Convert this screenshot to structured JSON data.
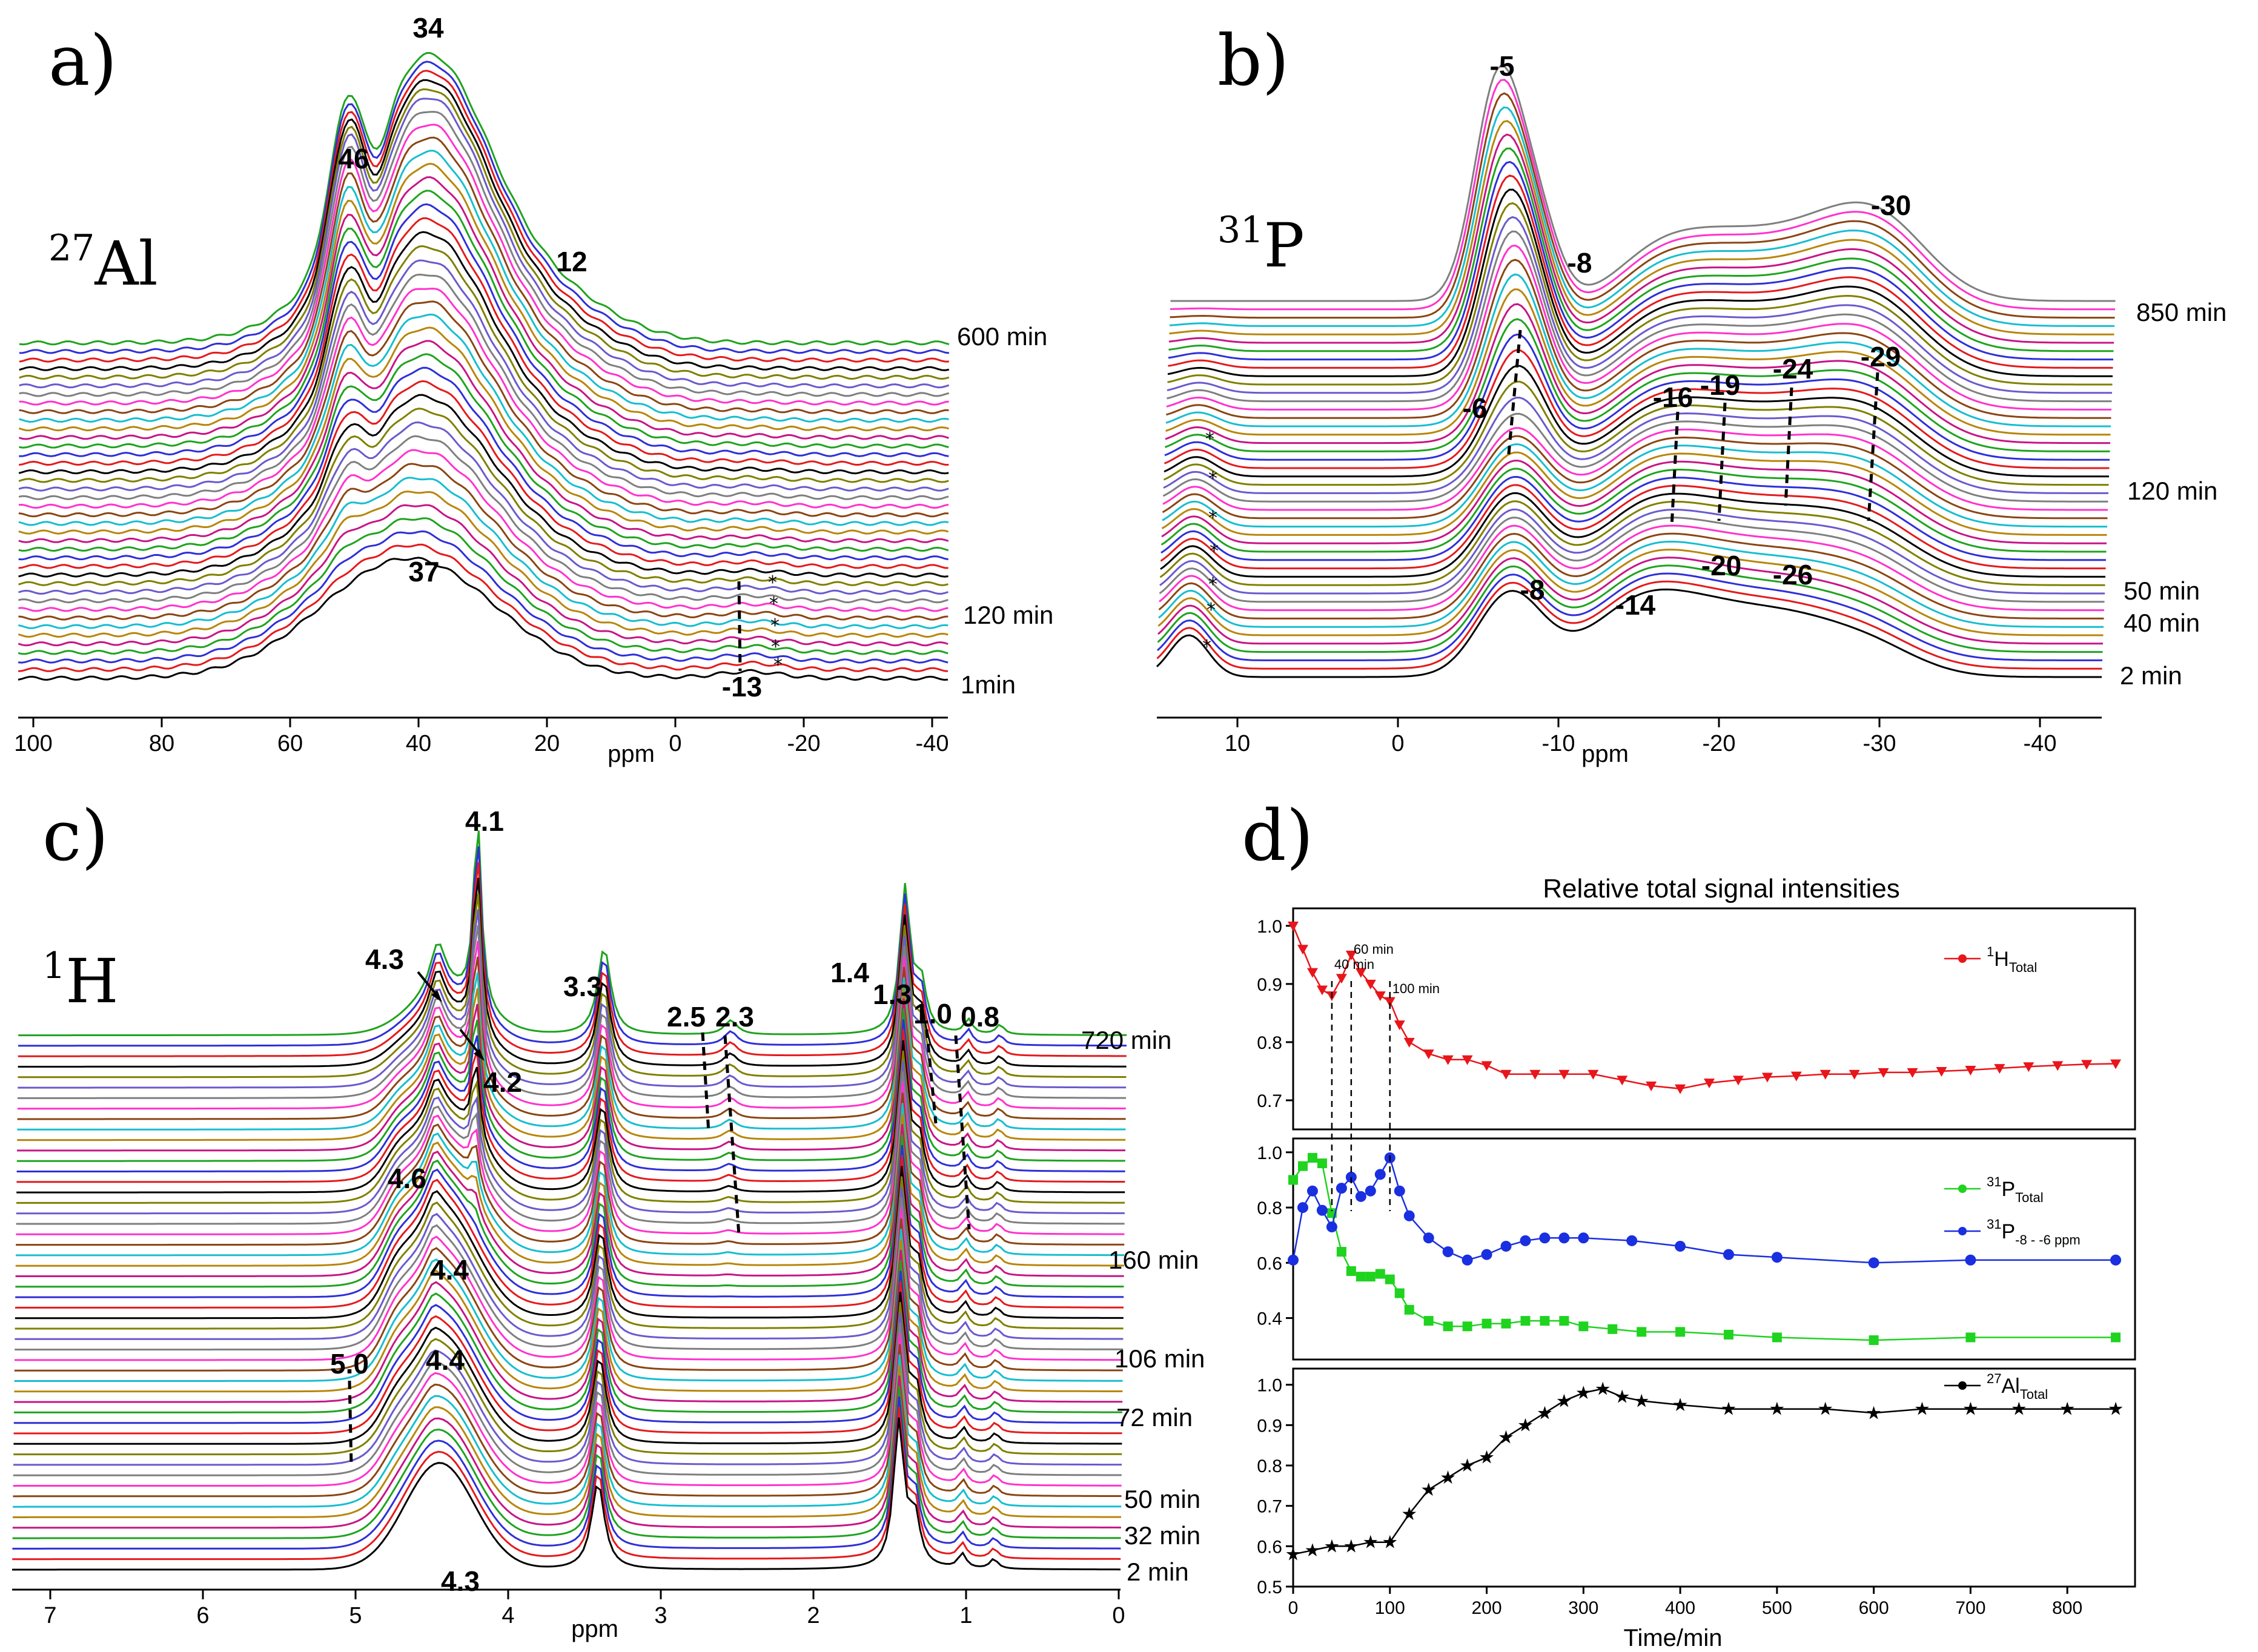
{
  "figure": {
    "panels": [
      {
        "letter": "a)",
        "nucleus_mass": "27",
        "nucleus_symbol": "Al"
      },
      {
        "letter": "b)",
        "nucleus_mass": "31",
        "nucleus_symbol": "P"
      },
      {
        "letter": "c)",
        "nucleus_mass": "1",
        "nucleus_symbol": "H"
      },
      {
        "letter": "d)"
      }
    ]
  },
  "chart_data": [
    {
      "panel": "a",
      "type": "line",
      "description_kind": "stacked NMR spectra",
      "nucleus": "27Al",
      "xlabel": "ppm",
      "x_ticks": [
        "100",
        "80",
        "60",
        "40",
        "20",
        "0",
        "-20",
        "-40"
      ],
      "xlim": [
        100,
        -50
      ],
      "n_spectra": 40,
      "time_labels": [
        "600 min",
        "120 min",
        "1min"
      ],
      "peaks_ppm": [
        46,
        34,
        37,
        12,
        -13
      ],
      "peak_labels": [
        "46",
        "34",
        "37",
        "12",
        "-13"
      ],
      "marker_label": "*",
      "palette": [
        "#000000",
        "#e41a1c",
        "#2f2fd8",
        "#1fa31f",
        "#c71585",
        "#b8860b",
        "#17becf",
        "#8b4513",
        "#ff33cc",
        "#7f7f7f",
        "#6a5acd",
        "#808000"
      ]
    },
    {
      "panel": "b",
      "type": "line",
      "description_kind": "stacked NMR spectra",
      "nucleus": "31P",
      "xlabel": "ppm",
      "x_ticks": [
        "10",
        "0",
        "-10",
        "-20",
        "-30",
        "-40"
      ],
      "xlim": [
        14,
        -45
      ],
      "n_spectra": 46,
      "time_labels": [
        "850 min",
        "120 min",
        "50 min",
        "40 min",
        "2 min"
      ],
      "peaks_ppm": [
        -5,
        -8,
        -6,
        -16,
        -19,
        -24,
        -30,
        -29,
        -8,
        -14,
        -20,
        -26
      ],
      "peak_labels": [
        "-5",
        "-8",
        "-6",
        "-16",
        "-19",
        "-24",
        "-30",
        "-29",
        "-8",
        "-14",
        "-20",
        "-26"
      ],
      "marker_label": "*"
    },
    {
      "panel": "c",
      "type": "line",
      "description_kind": "stacked NMR spectra",
      "nucleus": "1H",
      "xlabel": "ppm",
      "x_ticks": [
        "7",
        "6",
        "5",
        "4",
        "3",
        "2",
        "1",
        "0"
      ],
      "xlim": [
        7,
        0
      ],
      "n_spectra": 52,
      "time_labels": [
        "720 min",
        "160 min",
        "106 min",
        "72 min",
        "50 min",
        "32 min",
        "2 min"
      ],
      "peaks_ppm": [
        4.1,
        4.3,
        4.2,
        3.3,
        2.5,
        2.3,
        1.4,
        1.3,
        1.0,
        0.8,
        4.6,
        4.4,
        5.0,
        4.4,
        4.3
      ],
      "peak_labels": [
        "4.1",
        "4.3",
        "4.2",
        "3.3",
        "2.5",
        "2.3",
        "1.4",
        "1.3",
        "1.0",
        "0.8",
        "4.6",
        "4.4",
        "5.0",
        "4.4",
        "4.3"
      ]
    },
    {
      "panel": "d",
      "type": "line",
      "title": "Relative total signal intensities",
      "xlabel": "Time/min",
      "ylabel": "",
      "x_ticks": [
        "0",
        "100",
        "200",
        "300",
        "400",
        "500",
        "600",
        "700",
        "800"
      ],
      "xlim": [
        0,
        870
      ],
      "annotations": [
        "40 min",
        "60 min",
        "100 min"
      ],
      "annotation_times": [
        40,
        60,
        100
      ],
      "subplots": [
        {
          "ylim": [
            0.65,
            1.03
          ],
          "y_ticks": [
            "1.0",
            "0.9",
            "0.8",
            "0.7"
          ],
          "series": [
            {
              "name_main": "1",
              "name_base": "H",
              "name_sub": "Total",
              "color": "#e8151b",
              "marker": "triangle-down",
              "x": [
                0,
                10,
                20,
                30,
                40,
                50,
                60,
                70,
                80,
                90,
                100,
                110,
                120,
                140,
                160,
                180,
                200,
                220,
                250,
                280,
                310,
                340,
                370,
                400,
                430,
                460,
                490,
                520,
                550,
                580,
                610,
                640,
                670,
                700,
                730,
                760,
                790,
                820,
                850
              ],
              "y": [
                1.0,
                0.96,
                0.92,
                0.89,
                0.88,
                0.91,
                0.95,
                0.92,
                0.9,
                0.88,
                0.87,
                0.83,
                0.8,
                0.78,
                0.77,
                0.77,
                0.76,
                0.745,
                0.745,
                0.745,
                0.745,
                0.735,
                0.725,
                0.72,
                0.73,
                0.735,
                0.74,
                0.742,
                0.745,
                0.745,
                0.748,
                0.748,
                0.75,
                0.752,
                0.755,
                0.758,
                0.76,
                0.762,
                0.763
              ]
            }
          ]
        },
        {
          "ylim": [
            0.25,
            1.05
          ],
          "y_ticks": [
            "1.0",
            "0.8",
            "0.6",
            "0.4"
          ],
          "series": [
            {
              "name_main": "31",
              "name_base": "P",
              "name_sub": "Total",
              "color": "#1fd31f",
              "marker": "square",
              "x": [
                0,
                10,
                20,
                30,
                40,
                50,
                60,
                70,
                80,
                90,
                100,
                110,
                120,
                140,
                160,
                180,
                200,
                220,
                240,
                260,
                280,
                300,
                330,
                360,
                400,
                450,
                500,
                600,
                700,
                850
              ],
              "y": [
                0.9,
                0.95,
                0.98,
                0.96,
                0.78,
                0.64,
                0.57,
                0.55,
                0.55,
                0.56,
                0.54,
                0.49,
                0.43,
                0.39,
                0.37,
                0.37,
                0.38,
                0.38,
                0.39,
                0.39,
                0.39,
                0.37,
                0.36,
                0.35,
                0.35,
                0.34,
                0.33,
                0.32,
                0.33,
                0.33
              ]
            },
            {
              "name_main": "31",
              "name_base": "P",
              "name_sub": "-8 - -6 ppm",
              "color": "#1a2fe0",
              "marker": "circle",
              "x": [
                0,
                10,
                20,
                30,
                40,
                50,
                60,
                70,
                80,
                90,
                100,
                110,
                120,
                140,
                160,
                180,
                200,
                220,
                240,
                260,
                280,
                300,
                350,
                400,
                450,
                500,
                600,
                700,
                850
              ],
              "y": [
                0.61,
                0.8,
                0.86,
                0.79,
                0.73,
                0.87,
                0.91,
                0.84,
                0.86,
                0.92,
                0.98,
                0.86,
                0.77,
                0.69,
                0.64,
                0.61,
                0.63,
                0.66,
                0.68,
                0.69,
                0.69,
                0.69,
                0.68,
                0.66,
                0.63,
                0.62,
                0.6,
                0.61,
                0.61
              ]
            }
          ]
        },
        {
          "ylim": [
            0.5,
            1.04
          ],
          "y_ticks": [
            "1.0",
            "0.9",
            "0.8",
            "0.7",
            "0.6",
            "0.5"
          ],
          "series": [
            {
              "name_main": "27",
              "name_base": "Al",
              "name_sub": "Total",
              "color": "#000000",
              "marker": "star",
              "x": [
                0,
                20,
                40,
                60,
                80,
                100,
                120,
                140,
                160,
                180,
                200,
                220,
                240,
                260,
                280,
                300,
                320,
                340,
                360,
                400,
                450,
                500,
                550,
                600,
                650,
                700,
                750,
                800,
                850
              ],
              "y": [
                0.58,
                0.59,
                0.6,
                0.6,
                0.61,
                0.61,
                0.68,
                0.74,
                0.77,
                0.8,
                0.82,
                0.87,
                0.9,
                0.93,
                0.96,
                0.98,
                0.99,
                0.97,
                0.96,
                0.95,
                0.94,
                0.94,
                0.94,
                0.93,
                0.94,
                0.94,
                0.94,
                0.94,
                0.94
              ]
            }
          ]
        }
      ]
    }
  ]
}
